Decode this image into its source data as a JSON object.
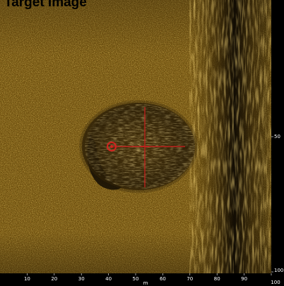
{
  "title": "Target Image",
  "colors": {
    "sediment": "#8a6414",
    "sediment_dark": "#3a2a08",
    "highlight": "#d9a83a",
    "shadow": "#140e04",
    "crosshair": "#c8201e",
    "axis_bar": "#000000",
    "label": "#ffffff"
  },
  "bottom_axis": {
    "ticks": [
      "10",
      "20",
      "30",
      "40",
      "50",
      "60",
      "70",
      "80",
      "90",
      "100"
    ],
    "range": [
      0,
      100
    ],
    "sub_label": "m"
  },
  "right_axis": {
    "ticks": [
      "50",
      "100"
    ],
    "range": [
      0,
      100
    ]
  },
  "target": {
    "center": [
      50,
      50
    ],
    "marker_icon": "circle-marker-icon",
    "crosshair_icon": "crosshair-icon"
  }
}
